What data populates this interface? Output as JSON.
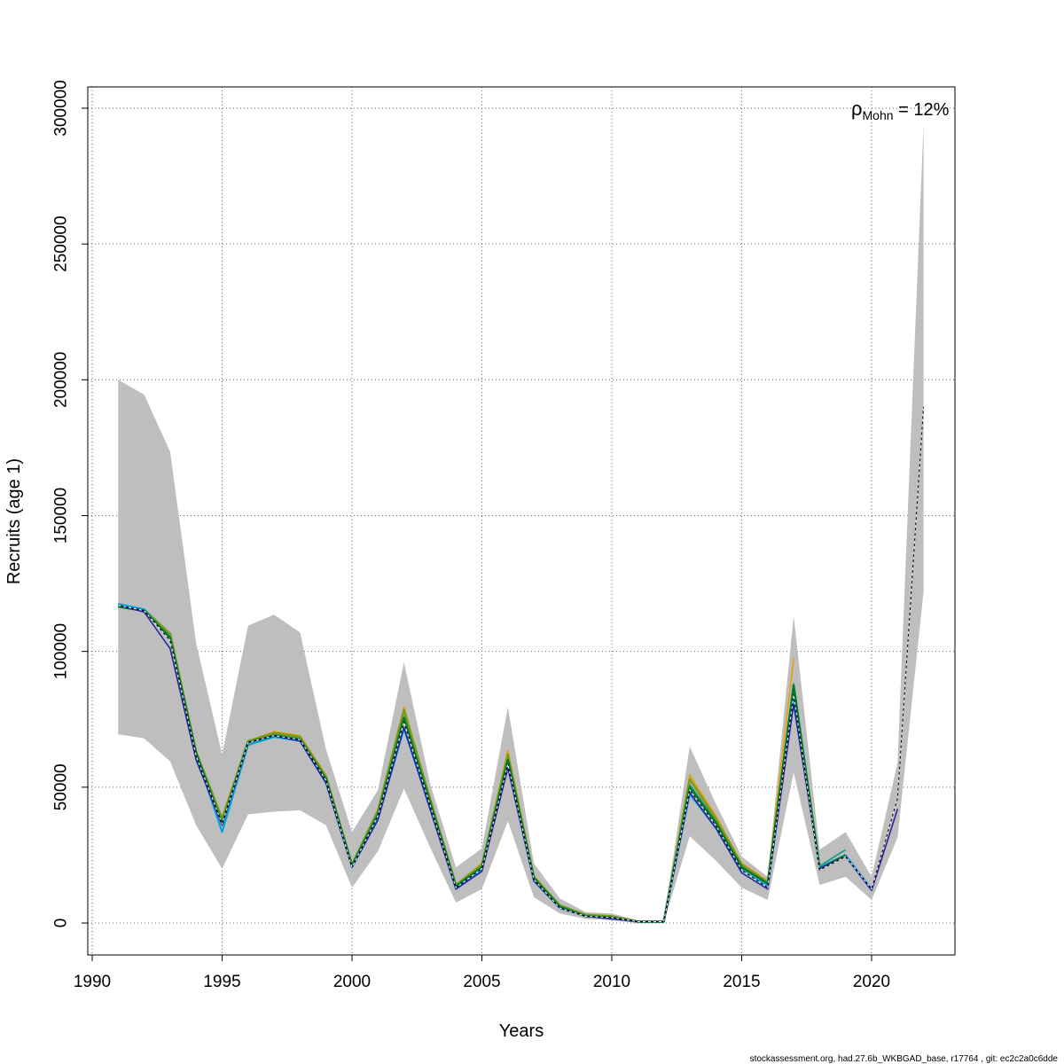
{
  "chart_data": {
    "type": "line",
    "xlabel": "Years",
    "ylabel": "Recruits (age 1)",
    "xlim": [
      1990,
      2022
    ],
    "ylim": [
      0,
      300000
    ],
    "x_ticks": [
      1990,
      1995,
      2000,
      2005,
      2010,
      2015,
      2020
    ],
    "y_ticks": [
      0,
      50000,
      100000,
      150000,
      200000,
      250000,
      300000
    ],
    "x_tick_labels": [
      "1990",
      "1995",
      "2000",
      "2005",
      "2010",
      "2015",
      "2020"
    ],
    "y_tick_labels": [
      "0",
      "50000",
      "100000",
      "150000",
      "200000",
      "250000",
      "300000"
    ],
    "grid": true,
    "mohn_rho": {
      "symbol": "ρ",
      "subscript": "Mohn",
      "value": " = 12%"
    },
    "footer": "stockassessment.org, had.27.6b_WKBGAD_base, r17764 , git: ec2c2a0c6dde",
    "confidence_band": {
      "x": [
        1991,
        1992,
        1993,
        1994,
        1995,
        1996,
        1997,
        1998,
        1999,
        2000,
        2001,
        2002,
        2003,
        2004,
        2005,
        2006,
        2007,
        2008,
        2009,
        2010,
        2011,
        2012,
        2013,
        2014,
        2015,
        2016,
        2017,
        2018,
        2019,
        2020,
        2021,
        2022
      ],
      "lower": [
        69500,
        68000,
        59500,
        36000,
        20000,
        40000,
        41000,
        41500,
        36000,
        13000,
        26500,
        49500,
        28000,
        7500,
        12500,
        37500,
        9500,
        3500,
        1500,
        1000,
        0,
        0,
        32000,
        23000,
        13000,
        8500,
        55500,
        14000,
        17000,
        8500,
        31500,
        122000
      ],
      "upper": [
        200000,
        194500,
        173500,
        103000,
        62000,
        109500,
        113500,
        107000,
        64000,
        33500,
        49000,
        96000,
        51500,
        20500,
        27500,
        79500,
        22000,
        9000,
        4000,
        3500,
        1000,
        1000,
        65000,
        44000,
        24500,
        17000,
        113000,
        27000,
        33500,
        17000,
        59000,
        294000
      ],
      "color": "#bebebe"
    },
    "series": [
      {
        "color": "#e6a000",
        "width": 1.5,
        "dashed": false,
        "x": [
          1991,
          1992,
          1993,
          1994,
          1995,
          1996,
          1997,
          1998,
          1999,
          2000,
          2001,
          2002,
          2003,
          2004,
          2005,
          2006,
          2007,
          2008,
          2009,
          2010,
          2011,
          2012,
          2013,
          2014,
          2015,
          2016,
          2017
        ],
        "values": [
          116500,
          115000,
          106000,
          62500,
          38000,
          67000,
          70500,
          69000,
          54500,
          21000,
          41500,
          79500,
          46000,
          14000,
          22000,
          63500,
          17500,
          6500,
          3000,
          2500,
          500,
          500,
          54500,
          39500,
          22000,
          15500,
          97500
        ]
      },
      {
        "color": "#2a9d8f",
        "width": 2,
        "dashed": false,
        "x": [
          1991,
          1992,
          1993,
          1994,
          1995,
          1996,
          1997,
          1998,
          1999,
          2000,
          2001,
          2002,
          2003,
          2004,
          2005,
          2006,
          2007,
          2008,
          2009,
          2010,
          2011,
          2012,
          2013,
          2014,
          2015,
          2016,
          2017,
          2018,
          2019
        ],
        "values": [
          117500,
          115500,
          106500,
          62500,
          37500,
          66500,
          69500,
          68000,
          52500,
          21000,
          40500,
          76000,
          44500,
          13500,
          21000,
          60500,
          16500,
          6000,
          2500,
          2000,
          500,
          500,
          51000,
          37500,
          21000,
          14500,
          88000,
          21000,
          27000
        ]
      },
      {
        "color": "#00a0e0",
        "width": 2,
        "dashed": false,
        "x": [
          1991,
          1992,
          1993,
          1994,
          1995,
          1996,
          1997,
          1998,
          1999,
          2000,
          2001,
          2002,
          2003,
          2004,
          2005,
          2006,
          2007,
          2008,
          2009,
          2010,
          2011,
          2012,
          2013,
          2014,
          2015,
          2016,
          2017,
          2018,
          2019,
          2020
        ],
        "values": [
          117500,
          115500,
          105500,
          62000,
          33500,
          65500,
          68500,
          67000,
          51500,
          20500,
          38500,
          71500,
          42500,
          12500,
          19500,
          57500,
          15500,
          5500,
          2500,
          2000,
          500,
          500,
          47500,
          35000,
          19500,
          13500,
          83500,
          20500,
          25000,
          12500
        ]
      },
      {
        "color": "#7a9a1a",
        "width": 2.5,
        "dashed": false,
        "x": [
          1991,
          1992,
          1993,
          1994,
          1995,
          1996,
          1997,
          1998,
          1999,
          2000,
          2001,
          2002,
          2003,
          2004,
          2005,
          2006,
          2007,
          2008,
          2009,
          2010,
          2011,
          2012,
          2013,
          2014,
          2015,
          2016,
          2017,
          2018
        ],
        "values": [
          116500,
          115000,
          106500,
          63000,
          38500,
          67000,
          70000,
          68500,
          54000,
          21500,
          41500,
          78500,
          46000,
          14000,
          21500,
          62000,
          17000,
          6500,
          3000,
          2500,
          500,
          500,
          53000,
          38500,
          21500,
          15000,
          87000,
          20500
        ]
      },
      {
        "color": "#007a30",
        "width": 2.5,
        "dashed": false,
        "x": [
          1991,
          1992,
          1993,
          1994,
          1995,
          1996,
          1997,
          1998,
          1999,
          2000,
          2001,
          2002,
          2003,
          2004,
          2005,
          2006,
          2007,
          2008,
          2009,
          2010,
          2011,
          2012,
          2013,
          2014,
          2015,
          2016,
          2017,
          2018,
          2019
        ],
        "values": [
          116500,
          115000,
          105000,
          62500,
          36500,
          66500,
          69000,
          67500,
          53000,
          21000,
          40000,
          75500,
          44500,
          13500,
          20500,
          60000,
          16500,
          6000,
          2500,
          2000,
          500,
          500,
          50000,
          37000,
          20500,
          14500,
          87500,
          20000,
          25000
        ]
      },
      {
        "color": "#2020a0",
        "width": 1.5,
        "dashed": false,
        "x": [
          1991,
          1992,
          1993,
          1994,
          1995,
          1996,
          1997,
          1998,
          1999,
          2000,
          2001,
          2002,
          2003,
          2004,
          2005,
          2006,
          2007,
          2008,
          2009,
          2010,
          2011,
          2012,
          2013,
          2014,
          2015,
          2016,
          2017,
          2018,
          2019,
          2020,
          2021
        ],
        "values": [
          117000,
          114500,
          101000,
          60000,
          36000,
          66500,
          69000,
          67000,
          51500,
          20500,
          38000,
          72000,
          42000,
          12500,
          19000,
          57000,
          15500,
          5500,
          2500,
          1500,
          500,
          500,
          48000,
          35000,
          18500,
          12500,
          80500,
          20000,
          24500,
          12000,
          42000
        ]
      },
      {
        "color": "#000000",
        "width": 1,
        "dashed": false,
        "x": [
          1991,
          1992,
          1993,
          1994,
          1995,
          1996,
          1997,
          1998,
          1999,
          2000,
          2001,
          2002,
          2003,
          2004,
          2005,
          2006,
          2007,
          2008,
          2009,
          2010,
          2011,
          2012,
          2013,
          2014,
          2015,
          2016,
          2017,
          2018,
          2019,
          2020,
          2021,
          2022
        ],
        "values": [
          117000,
          115000,
          104000,
          61500,
          36500,
          66500,
          69000,
          67500,
          52500,
          20500,
          39500,
          74000,
          43500,
          13000,
          20000,
          58500,
          16000,
          5500,
          2500,
          2000,
          500,
          500,
          49000,
          36000,
          19500,
          13000,
          84000,
          19500,
          24500,
          12500,
          46000,
          190000
        ]
      },
      {
        "color": "#ffffff",
        "width": 1,
        "dashed": true,
        "x": [
          1991,
          1992,
          1993,
          1994,
          1995,
          1996,
          1997,
          1998,
          1999,
          2000,
          2001,
          2002,
          2003,
          2004,
          2005,
          2006,
          2007,
          2008,
          2009,
          2010,
          2011,
          2012,
          2013,
          2014,
          2015,
          2016,
          2017,
          2018,
          2019,
          2020,
          2021,
          2022
        ],
        "values": [
          117000,
          115000,
          104000,
          61500,
          36500,
          66500,
          69000,
          67500,
          52500,
          20500,
          39500,
          74000,
          43500,
          13000,
          20000,
          58500,
          16000,
          5500,
          2500,
          2000,
          500,
          500,
          49000,
          36000,
          19500,
          13000,
          84000,
          19500,
          24500,
          12500,
          46000,
          190000
        ]
      }
    ]
  }
}
